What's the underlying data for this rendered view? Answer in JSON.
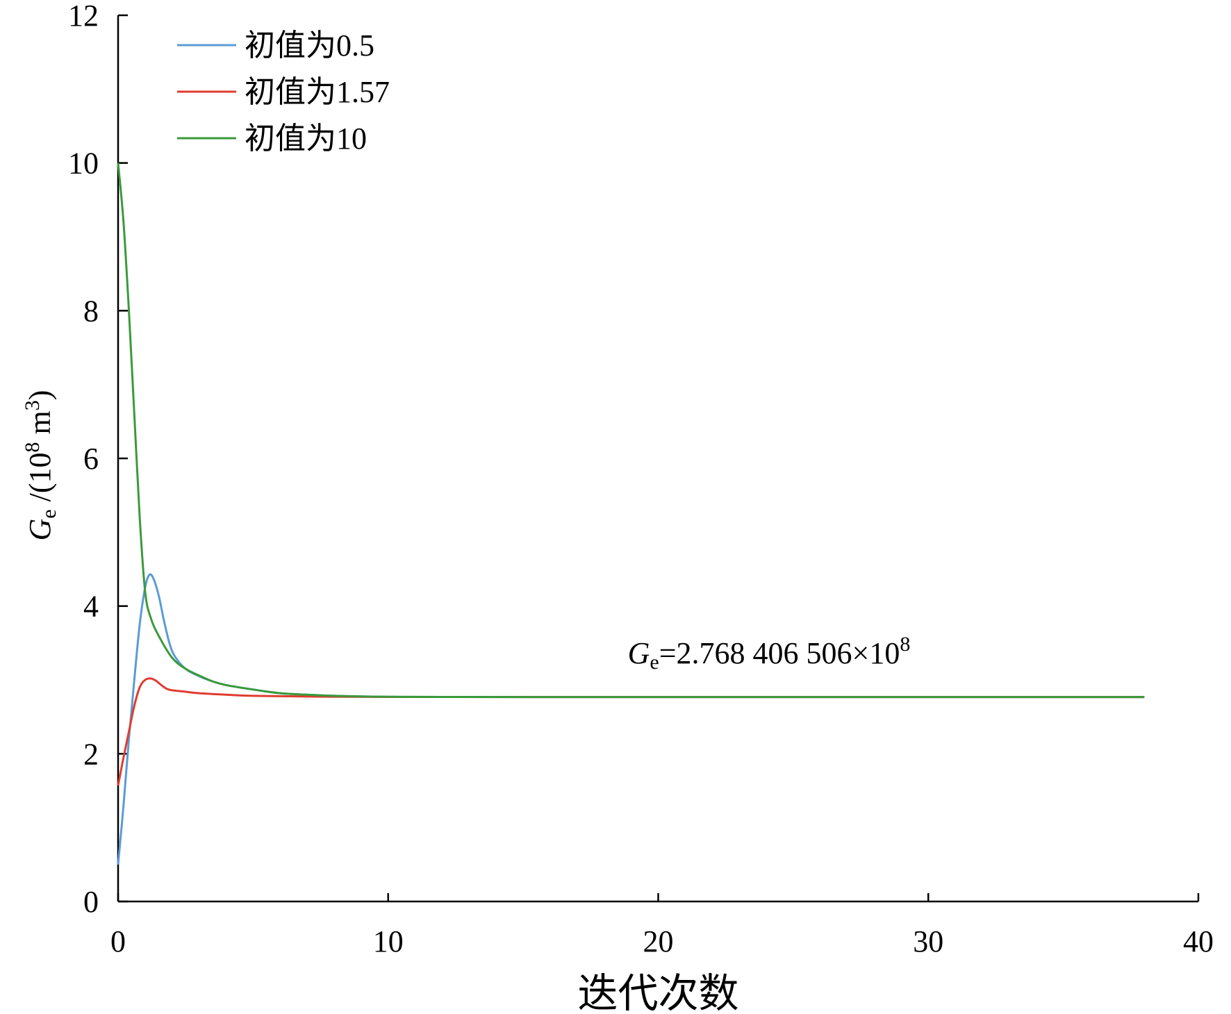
{
  "chart_data": {
    "type": "line",
    "title": "",
    "xlabel": "迭代次数",
    "ylabel": {
      "symbol": "G",
      "subscript": "e",
      "unit_prefix": " /(10",
      "unit_exp": "8",
      "unit_mid": " m",
      "unit_exp2": "3",
      "unit_suffix": ")"
    },
    "xlim": [
      0,
      40
    ],
    "ylim": [
      0,
      12
    ],
    "xticks": [
      "0",
      "10",
      "20",
      "30",
      "40"
    ],
    "yticks": [
      "0",
      "2",
      "4",
      "6",
      "8",
      "10",
      "12"
    ],
    "grid": false,
    "legend_position": "top-left",
    "annotation": {
      "symbol": "G",
      "subscript": "e",
      "text": "=2.768 406 506×10",
      "exp": "8",
      "x": 19,
      "y": 3.0
    },
    "series": [
      {
        "name": "初值为0.5",
        "color": "#5b9bd5",
        "points": [
          [
            0,
            0.5
          ],
          [
            0.2,
            1.3
          ],
          [
            0.4,
            2.2
          ],
          [
            0.6,
            3.0
          ],
          [
            0.8,
            3.75
          ],
          [
            1.0,
            4.25
          ],
          [
            1.15,
            4.42
          ],
          [
            1.3,
            4.38
          ],
          [
            1.5,
            4.15
          ],
          [
            1.7,
            3.8
          ],
          [
            1.9,
            3.5
          ],
          [
            2.1,
            3.32
          ],
          [
            2.5,
            3.15
          ],
          [
            3.0,
            3.05
          ],
          [
            3.5,
            2.98
          ],
          [
            4.0,
            2.93
          ],
          [
            5.0,
            2.87
          ],
          [
            6.0,
            2.82
          ],
          [
            7.0,
            2.8
          ],
          [
            8.0,
            2.785
          ],
          [
            10.0,
            2.772
          ],
          [
            13.0,
            2.769
          ],
          [
            20.0,
            2.7684
          ],
          [
            30.0,
            2.7684
          ],
          [
            38.0,
            2.7684
          ]
        ]
      },
      {
        "name": "初值为1.57",
        "color": "#e03c31",
        "points": [
          [
            0,
            1.57
          ],
          [
            0.2,
            1.95
          ],
          [
            0.4,
            2.3
          ],
          [
            0.6,
            2.65
          ],
          [
            0.8,
            2.9
          ],
          [
            1.0,
            3.0
          ],
          [
            1.2,
            3.02
          ],
          [
            1.4,
            2.99
          ],
          [
            1.6,
            2.93
          ],
          [
            1.8,
            2.88
          ],
          [
            2.0,
            2.86
          ],
          [
            2.5,
            2.84
          ],
          [
            3.0,
            2.82
          ],
          [
            4.0,
            2.8
          ],
          [
            5.0,
            2.785
          ],
          [
            7.0,
            2.775
          ],
          [
            10.0,
            2.77
          ],
          [
            20.0,
            2.7684
          ],
          [
            30.0,
            2.7684
          ],
          [
            38.0,
            2.7684
          ]
        ]
      },
      {
        "name": "初值为10",
        "color": "#3a9a3a",
        "points": [
          [
            0,
            10.0
          ],
          [
            0.2,
            9.2
          ],
          [
            0.4,
            8.0
          ],
          [
            0.6,
            6.6
          ],
          [
            0.8,
            5.2
          ],
          [
            1.0,
            4.2
          ],
          [
            1.2,
            3.85
          ],
          [
            1.5,
            3.6
          ],
          [
            2.0,
            3.3
          ],
          [
            2.5,
            3.15
          ],
          [
            3.0,
            3.06
          ],
          [
            3.5,
            2.98
          ],
          [
            4.0,
            2.93
          ],
          [
            5.0,
            2.87
          ],
          [
            6.0,
            2.82
          ],
          [
            7.0,
            2.8
          ],
          [
            8.0,
            2.785
          ],
          [
            10.0,
            2.772
          ],
          [
            13.0,
            2.769
          ],
          [
            20.0,
            2.7684
          ],
          [
            30.0,
            2.7684
          ],
          [
            38.0,
            2.7684
          ]
        ]
      }
    ]
  }
}
